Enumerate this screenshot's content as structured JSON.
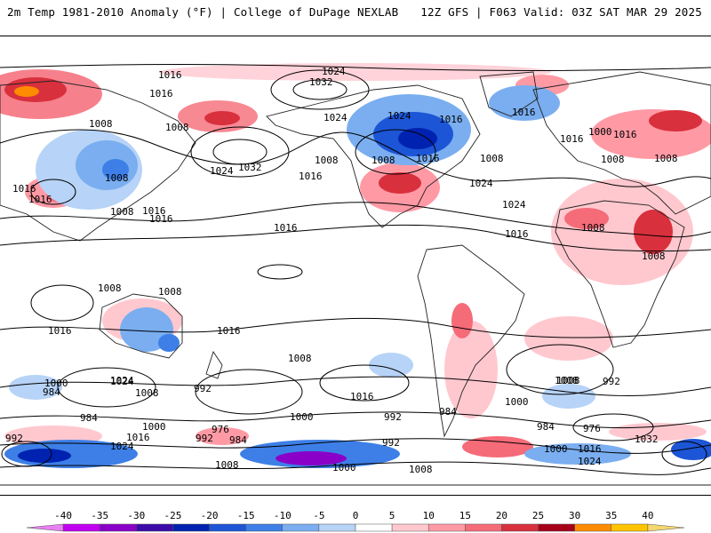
{
  "header": {
    "left_title": "2m Temp 1981-2010 Anomaly (°F) | College of DuPage NEXLAB",
    "right_title": "12Z GFS | F063 Valid: 03Z SAT MAR 29 2025"
  },
  "map": {
    "projection": "global equirectangular",
    "isobar_labels": [
      "1016",
      "1024",
      "1032",
      "1016",
      "1008",
      "1008",
      "1024",
      "1024",
      "1016",
      "1016",
      "1008",
      "1032",
      "1024",
      "1008",
      "1016",
      "1016",
      "1016",
      "1008",
      "1008",
      "1016",
      "1000",
      "1008",
      "1008",
      "1016",
      "1024",
      "1024",
      "1016",
      "1008",
      "1008",
      "1016",
      "1016",
      "1008",
      "1008",
      "1016",
      "1008",
      "1016",
      "1016",
      "1008",
      "1024",
      "1016",
      "1000",
      "984",
      "1024",
      "992",
      "1008",
      "1016",
      "1000",
      "992",
      "984",
      "992",
      "1000",
      "976",
      "984",
      "1008",
      "984",
      "992",
      "1024",
      "1032",
      "1016",
      "1024",
      "1008",
      "1000",
      "992",
      "984",
      "976",
      "1000",
      "992",
      "1016",
      "1000",
      "1008",
      "1008"
    ]
  },
  "colorbar": {
    "ticks": [
      "-40",
      "-35",
      "-30",
      "-25",
      "-20",
      "-15",
      "-10",
      "-5",
      "0",
      "5",
      "10",
      "15",
      "20",
      "25",
      "30",
      "35",
      "40"
    ],
    "colors": [
      "#e87ff2",
      "#c100f2",
      "#8a00c8",
      "#3b0aa8",
      "#0022b0",
      "#1c55d6",
      "#3d7fe6",
      "#7aaef0",
      "#b7d3f7",
      "#ffffff",
      "#ffc8cf",
      "#ff9aa5",
      "#f56b78",
      "#d9303e",
      "#a6001a",
      "#ff8c00",
      "#ffc400",
      "#f5d76e"
    ]
  }
}
